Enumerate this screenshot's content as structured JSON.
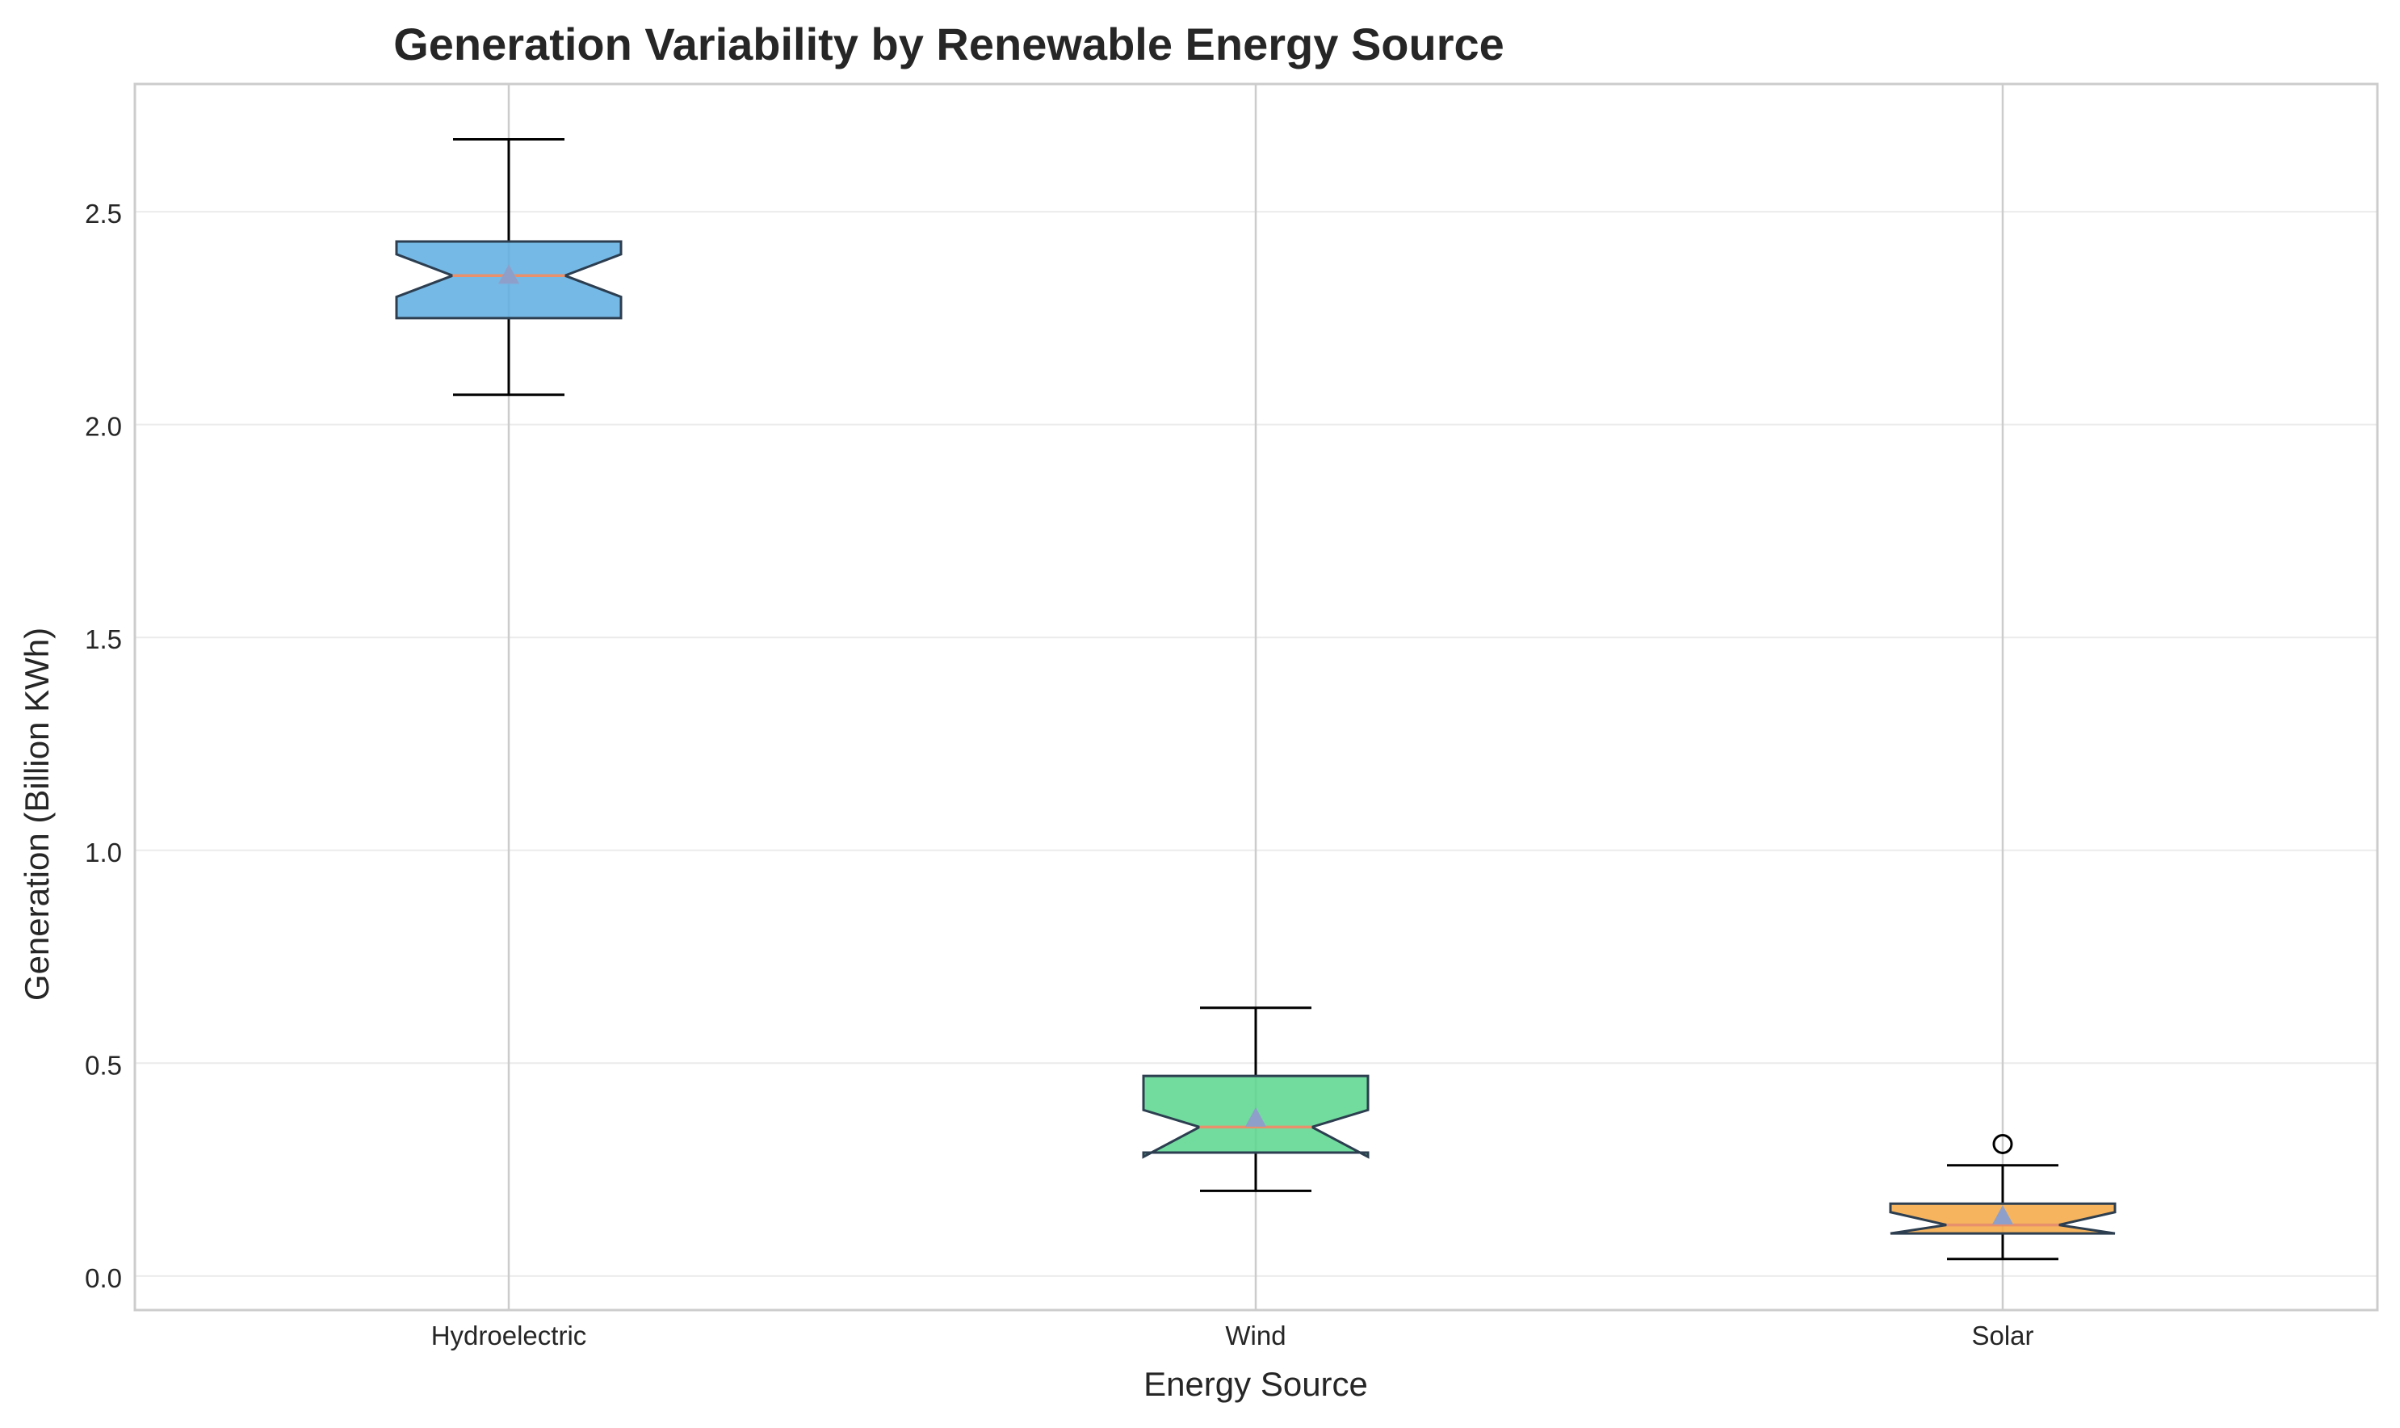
{
  "chart_data": {
    "type": "boxplot",
    "title": "Generation Variability by Renewable Energy Source",
    "xlabel": "Energy Source",
    "ylabel": "Generation (Billion KWh)",
    "ylim": [
      -0.08,
      2.8
    ],
    "yticks": [
      0.0,
      0.5,
      1.0,
      1.5,
      2.0,
      2.5
    ],
    "ytick_labels": [
      "0.0",
      "0.5",
      "1.0",
      "1.5",
      "2.0",
      "2.5"
    ],
    "grid": true,
    "notched": true,
    "show_means": true,
    "categories": [
      "Hydroelectric",
      "Wind",
      "Solar"
    ],
    "boxes": [
      {
        "category": "Hydroelectric",
        "whisker_low": 2.07,
        "q1": 2.25,
        "median": 2.35,
        "q3": 2.43,
        "whisker_high": 2.67,
        "mean": 2.35,
        "notch_low": 2.3,
        "notch_high": 2.4,
        "outliers": [],
        "color": "#5dade2"
      },
      {
        "category": "Wind",
        "whisker_low": 0.2,
        "q1": 0.29,
        "median": 0.35,
        "q3": 0.47,
        "whisker_high": 0.63,
        "mean": 0.37,
        "notch_low": 0.28,
        "notch_high": 0.39,
        "outliers": [],
        "color": "#58d68d"
      },
      {
        "category": "Solar",
        "whisker_low": 0.04,
        "q1": 0.1,
        "median": 0.12,
        "q3": 0.17,
        "whisker_high": 0.26,
        "mean": 0.14,
        "notch_low": 0.1,
        "notch_high": 0.15,
        "outliers": [
          0.31
        ],
        "color": "#f5a742"
      }
    ],
    "median_color": "#e8906b",
    "mean_marker_color": "#8ea0c9"
  }
}
